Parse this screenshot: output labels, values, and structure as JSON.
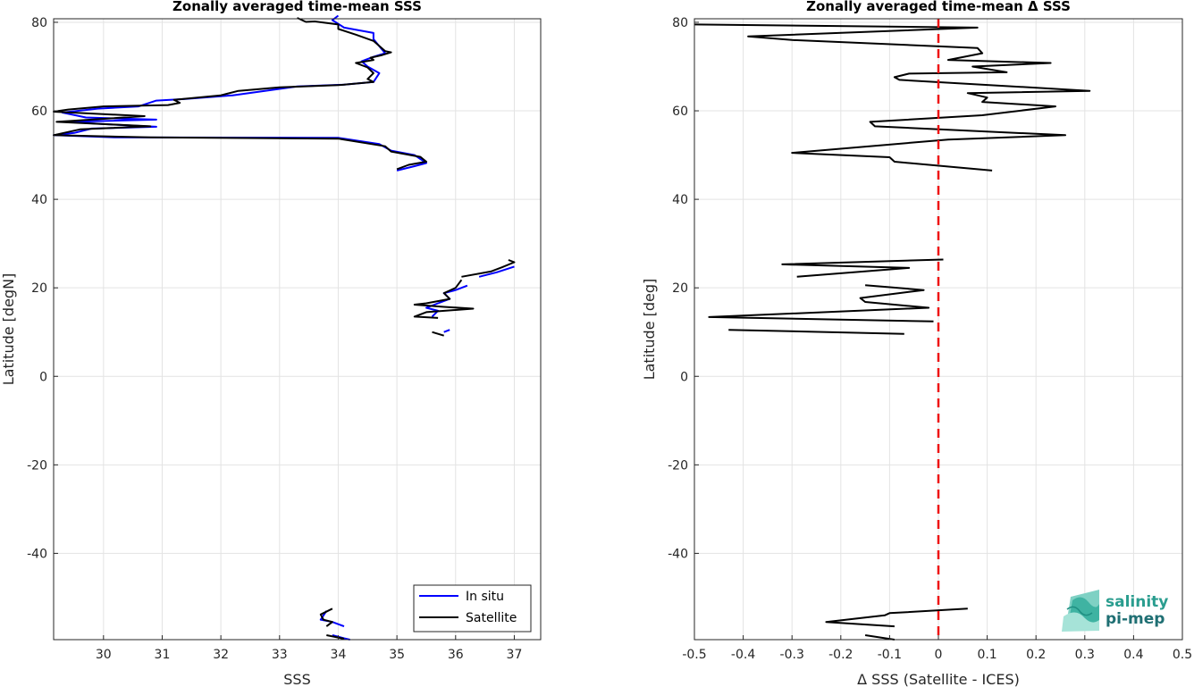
{
  "chart_data": [
    {
      "type": "line",
      "title": "Zonally averaged time-mean SSS",
      "xlabel": "SSS",
      "ylabel": "Latitude [degN]",
      "xlim": [
        29.15,
        37.45
      ],
      "ylim": [
        -59.5,
        80.8
      ],
      "xticks": [
        30,
        31,
        32,
        33,
        34,
        35,
        36,
        37
      ],
      "yticks": [
        -40,
        -20,
        0,
        20,
        40,
        60,
        80
      ],
      "xtick_labels": [
        "30",
        "31",
        "32",
        "33",
        "34",
        "35",
        "36",
        "37"
      ],
      "ytick_labels": [
        "-40",
        "-20",
        "0",
        "20",
        "40",
        "60",
        "80"
      ],
      "grid": true,
      "legend": {
        "position": "bottom-right",
        "entries": [
          "In situ",
          "Satellite"
        ]
      },
      "series": [
        {
          "name": "In situ",
          "color": "#0000ff",
          "segments": [
            [
              [
                34.0,
                81.5
              ],
              [
                33.9,
                80.5
              ],
              [
                34.1,
                78.8
              ],
              [
                34.6,
                77.6
              ],
              [
                34.6,
                76.2
              ],
              [
                34.7,
                74.6
              ],
              [
                34.8,
                73.0
              ],
              [
                34.6,
                72.2
              ],
              [
                34.4,
                71.2
              ],
              [
                34.5,
                70.0
              ],
              [
                34.7,
                68.5
              ],
              [
                34.6,
                66.5
              ],
              [
                34.1,
                65.9
              ],
              [
                33.3,
                65.5
              ],
              [
                32.2,
                63.5
              ],
              [
                31.4,
                62.7
              ],
              [
                30.9,
                62.3
              ],
              [
                30.6,
                61.0
              ],
              [
                29.9,
                60.5
              ],
              [
                29.3,
                59.6
              ],
              [
                29.7,
                58.5
              ],
              [
                30.9,
                58.0
              ],
              [
                29.4,
                57.5
              ],
              [
                30.0,
                57.0
              ],
              [
                30.9,
                56.4
              ],
              [
                29.8,
                56.0
              ],
              [
                29.5,
                55.0
              ],
              [
                29.15,
                54.5
              ],
              [
                30.2,
                54.0
              ],
              [
                34.0,
                53.9
              ],
              [
                34.7,
                52.5
              ],
              [
                34.9,
                51.0
              ],
              [
                35.3,
                50.0
              ],
              [
                35.5,
                48.2
              ],
              [
                35.3,
                47.5
              ],
              [
                35.0,
                46.5
              ]
            ],
            [
              [
                37.0,
                24.8
              ],
              [
                36.7,
                23.5
              ],
              [
                36.4,
                22.5
              ]
            ],
            [
              [
                36.2,
                20.5
              ],
              [
                36.0,
                19.5
              ],
              [
                35.8,
                18.8
              ],
              [
                35.9,
                17.5
              ],
              [
                35.7,
                16.5
              ],
              [
                35.5,
                15.5
              ],
              [
                35.7,
                14.8
              ],
              [
                35.6,
                13.5
              ]
            ],
            [
              [
                35.8,
                10.0
              ],
              [
                35.9,
                10.5
              ]
            ],
            [
              [
                33.8,
                -53.0
              ],
              [
                33.7,
                -55.0
              ],
              [
                33.9,
                -55.5
              ],
              [
                34.0,
                -56.0
              ],
              [
                34.1,
                -56.5
              ]
            ],
            [
              [
                33.9,
                -58.5
              ],
              [
                34.1,
                -59.2
              ],
              [
                34.2,
                -59.5
              ]
            ]
          ]
        },
        {
          "name": "Satellite",
          "color": "#000000",
          "segments": [
            [
              [
                33.3,
                81.0
              ],
              [
                33.45,
                80.1
              ],
              [
                33.6,
                80.2
              ],
              [
                34.0,
                79.5
              ],
              [
                34.0,
                78.5
              ],
              [
                34.3,
                77.2
              ],
              [
                34.6,
                75.8
              ],
              [
                34.8,
                73.5
              ],
              [
                34.9,
                73.2
              ],
              [
                34.75,
                72.6
              ],
              [
                34.55,
                72.0
              ],
              [
                34.6,
                71.5
              ],
              [
                34.3,
                70.8
              ],
              [
                34.5,
                69.8
              ],
              [
                34.6,
                68.5
              ],
              [
                34.5,
                67.2
              ],
              [
                34.6,
                66.5
              ],
              [
                34.0,
                65.8
              ],
              [
                33.0,
                65.3
              ],
              [
                32.3,
                64.5
              ],
              [
                32.0,
                63.5
              ],
              [
                31.2,
                62.5
              ],
              [
                31.3,
                61.8
              ],
              [
                31.1,
                61.3
              ],
              [
                30.0,
                61.0
              ],
              [
                29.4,
                60.3
              ],
              [
                29.15,
                59.8
              ],
              [
                30.7,
                58.8
              ],
              [
                29.2,
                57.5
              ],
              [
                30.8,
                56.5
              ],
              [
                29.6,
                55.8
              ],
              [
                29.15,
                54.5
              ],
              [
                30.8,
                54.0
              ],
              [
                34.0,
                53.7
              ],
              [
                34.8,
                52.0
              ],
              [
                34.9,
                50.8
              ],
              [
                35.4,
                49.6
              ],
              [
                35.5,
                48.5
              ],
              [
                35.2,
                47.8
              ],
              [
                35.0,
                46.8
              ]
            ],
            [
              [
                36.9,
                26.3
              ],
              [
                37.0,
                25.8
              ],
              [
                36.8,
                24.7
              ],
              [
                36.6,
                23.7
              ],
              [
                36.1,
                22.5
              ]
            ],
            [
              [
                36.1,
                21.8
              ],
              [
                36.0,
                20.0
              ],
              [
                35.8,
                18.8
              ],
              [
                35.9,
                17.5
              ],
              [
                35.5,
                16.5
              ],
              [
                35.3,
                16.2
              ],
              [
                35.8,
                15.7
              ],
              [
                36.3,
                15.3
              ],
              [
                35.5,
                14.5
              ],
              [
                35.3,
                13.5
              ],
              [
                35.7,
                13.2
              ]
            ],
            [
              [
                35.6,
                10.0
              ],
              [
                35.8,
                9.2
              ]
            ],
            [
              [
                33.9,
                -52.5
              ],
              [
                33.7,
                -53.8
              ],
              [
                33.75,
                -55.0
              ],
              [
                33.9,
                -55.5
              ],
              [
                33.8,
                -56.5
              ]
            ],
            [
              [
                33.8,
                -58.5
              ],
              [
                34.1,
                -59.3
              ]
            ]
          ]
        }
      ]
    },
    {
      "type": "line",
      "title": "Zonally averaged time-mean Δ SSS",
      "xlabel": "Δ SSS (Satellite - ICES)",
      "ylabel": "Latitude [deg]",
      "xlim": [
        -0.5,
        0.5
      ],
      "ylim": [
        -59.5,
        80.8
      ],
      "xticks": [
        -0.5,
        -0.4,
        -0.3,
        -0.2,
        -0.1,
        0,
        0.1,
        0.2,
        0.3,
        0.4,
        0.5
      ],
      "yticks": [
        -40,
        -20,
        0,
        20,
        40,
        60,
        80
      ],
      "xtick_labels": [
        "-0.5",
        "-0.4",
        "-0.3",
        "-0.2",
        "-0.1",
        "0",
        "0.1",
        "0.2",
        "0.3",
        "0.4",
        "0.5"
      ],
      "ytick_labels": [
        "-40",
        "-20",
        "0",
        "20",
        "40",
        "60",
        "80"
      ],
      "grid": true,
      "zero_line": {
        "x": 0,
        "color": "#ee1111",
        "dashed": true
      },
      "series": [
        {
          "color": "#000000",
          "segments": [
            [
              [
                -0.5,
                79.5
              ],
              [
                0.08,
                78.8
              ],
              [
                -0.39,
                76.8
              ],
              [
                -0.3,
                76.0
              ],
              [
                0.08,
                74.2
              ],
              [
                0.09,
                73.0
              ],
              [
                0.02,
                71.5
              ],
              [
                0.23,
                70.8
              ],
              [
                0.07,
                70.0
              ],
              [
                0.14,
                68.7
              ],
              [
                -0.06,
                68.4
              ],
              [
                -0.09,
                67.6
              ],
              [
                -0.08,
                67.0
              ],
              [
                0.31,
                64.5
              ],
              [
                0.06,
                64.0
              ],
              [
                0.1,
                63.0
              ],
              [
                0.09,
                62.0
              ],
              [
                0.24,
                61.0
              ],
              [
                0.09,
                59.0
              ],
              [
                -0.14,
                57.5
              ],
              [
                -0.13,
                56.5
              ],
              [
                0.26,
                54.5
              ],
              [
                0.02,
                53.5
              ],
              [
                -0.3,
                50.5
              ],
              [
                -0.1,
                49.5
              ],
              [
                -0.09,
                48.5
              ],
              [
                0.11,
                46.5
              ]
            ],
            [
              [
                0.01,
                26.4
              ],
              [
                -0.32,
                25.3
              ],
              [
                -0.06,
                24.5
              ],
              [
                -0.29,
                22.5
              ]
            ],
            [
              [
                -0.15,
                20.6
              ],
              [
                -0.03,
                19.5
              ],
              [
                -0.16,
                17.7
              ],
              [
                -0.15,
                16.8
              ],
              [
                -0.02,
                15.5
              ],
              [
                -0.47,
                13.4
              ],
              [
                -0.01,
                12.4
              ]
            ],
            [
              [
                -0.43,
                10.5
              ],
              [
                -0.07,
                9.6
              ]
            ],
            [
              [
                0.06,
                -52.5
              ],
              [
                -0.1,
                -53.5
              ],
              [
                -0.11,
                -54.0
              ],
              [
                -0.23,
                -55.5
              ],
              [
                -0.09,
                -56.5
              ]
            ],
            [
              [
                -0.15,
                -58.5
              ],
              [
                -0.09,
                -59.5
              ]
            ]
          ]
        }
      ]
    }
  ],
  "logo": {
    "line1": "salinity",
    "line2": "pi-mep"
  }
}
